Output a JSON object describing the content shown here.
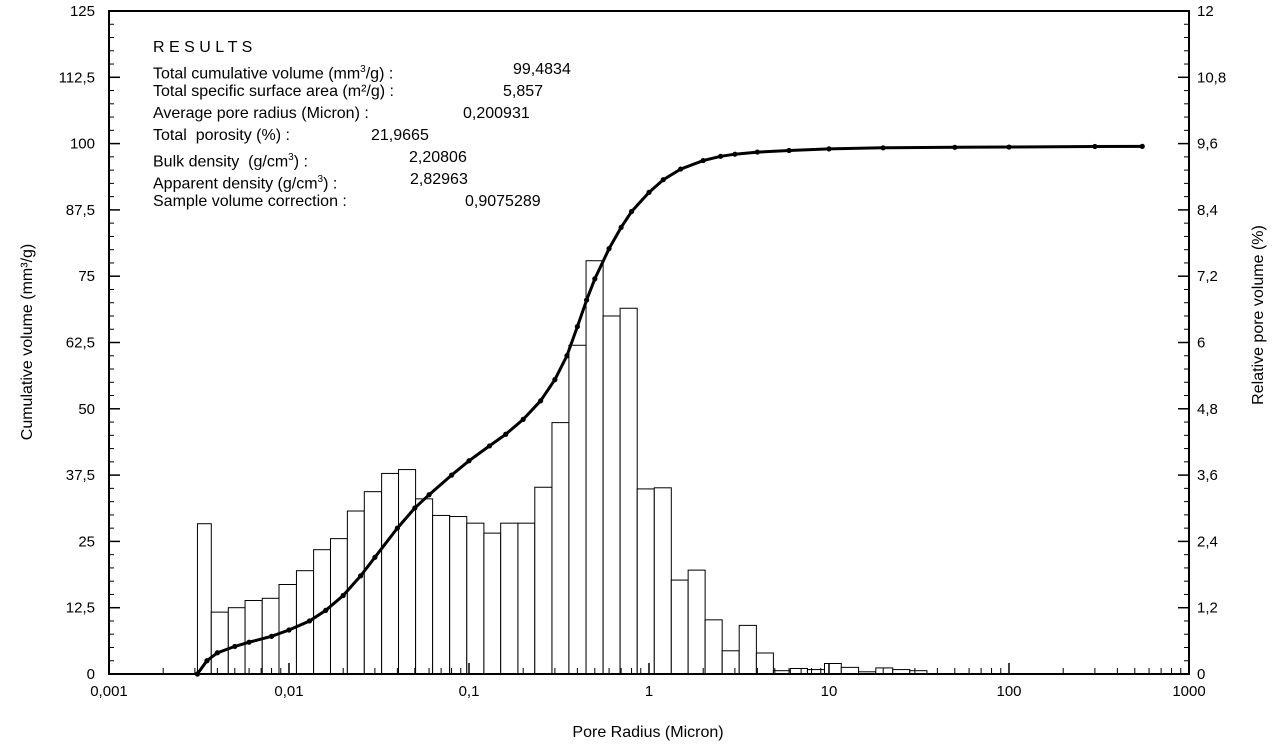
{
  "chart_data": {
    "type": "bar",
    "combo": "histogram (bars) with cumulative line",
    "xlabel": "Pore Radius (Micron)",
    "ylabel_left": "Cumulative volume (mm³/g)",
    "ylabel_right": "Relative pore volume (%)",
    "x_scale": "log",
    "xlim": [
      0.001,
      1000
    ],
    "ylim_left": [
      0,
      125
    ],
    "ylim_right": [
      0,
      12
    ],
    "x_ticks": [
      "0,001",
      "0,01",
      "0,1",
      "1",
      "10",
      "100",
      "1000"
    ],
    "y_ticks_left": [
      "0",
      "12,5",
      "25",
      "37,5",
      "50",
      "62,5",
      "75",
      "87,5",
      "100",
      "112,5",
      "125"
    ],
    "y_ticks_right": [
      "0",
      "1,2",
      "2,4",
      "3,6",
      "4,8",
      "6",
      "7,2",
      "8,4",
      "9,6",
      "10,8",
      "12"
    ],
    "grid": false,
    "results": {
      "heading": "R E S U L T S",
      "l1_label": "Total cumulative volume (mm",
      "l1_sup": "3",
      "l1_rest": "/g) :",
      "l1_value": "99,4834",
      "l2_label": "Total specific surface area (m²/g) :",
      "l2_value": "5,857",
      "l3_label": "Average pore radius (Micron) :",
      "l3_value": "0,200931",
      "l4_label": "Total  porosity (%) :",
      "l4_value": "21,9665",
      "l5_label": "Bulk density  (g/cm",
      "l5_sup": "3",
      "l5_rest": ") :",
      "l5_value": "2,20806",
      "l6_label": "Apparent density (g/cm",
      "l6_sup": "3",
      "l6_rest": ") :",
      "l6_value": "2,82963",
      "l7_label": "Sample volume correction :",
      "l7_value": "0,9075289"
    },
    "histogram": {
      "name": "Relative pore volume (%)",
      "bins": [
        {
          "x0": 0.0031,
          "x1": 0.0037,
          "value": 2.72
        },
        {
          "x0": 0.0037,
          "x1": 0.0046,
          "value": 1.12
        },
        {
          "x0": 0.0046,
          "x1": 0.0057,
          "value": 1.2
        },
        {
          "x0": 0.0057,
          "x1": 0.0071,
          "value": 1.33
        },
        {
          "x0": 0.0071,
          "x1": 0.0088,
          "value": 1.37
        },
        {
          "x0": 0.0088,
          "x1": 0.011,
          "value": 1.62
        },
        {
          "x0": 0.011,
          "x1": 0.0137,
          "value": 1.87
        },
        {
          "x0": 0.0137,
          "x1": 0.017,
          "value": 2.25
        },
        {
          "x0": 0.017,
          "x1": 0.0211,
          "value": 2.45
        },
        {
          "x0": 0.0211,
          "x1": 0.0262,
          "value": 2.95
        },
        {
          "x0": 0.0262,
          "x1": 0.0327,
          "value": 3.3
        },
        {
          "x0": 0.0327,
          "x1": 0.0406,
          "value": 3.63
        },
        {
          "x0": 0.0406,
          "x1": 0.0505,
          "value": 3.7
        },
        {
          "x0": 0.0505,
          "x1": 0.0628,
          "value": 3.17
        },
        {
          "x0": 0.0628,
          "x1": 0.0781,
          "value": 2.87
        },
        {
          "x0": 0.0781,
          "x1": 0.0972,
          "value": 2.85
        },
        {
          "x0": 0.0972,
          "x1": 0.121,
          "value": 2.73
        },
        {
          "x0": 0.121,
          "x1": 0.15,
          "value": 2.55
        },
        {
          "x0": 0.15,
          "x1": 0.187,
          "value": 2.73
        },
        {
          "x0": 0.187,
          "x1": 0.232,
          "value": 2.73
        },
        {
          "x0": 0.232,
          "x1": 0.289,
          "value": 3.38
        },
        {
          "x0": 0.289,
          "x1": 0.359,
          "value": 4.55
        },
        {
          "x0": 0.359,
          "x1": 0.447,
          "value": 5.95
        },
        {
          "x0": 0.447,
          "x1": 0.556,
          "value": 7.48
        },
        {
          "x0": 0.556,
          "x1": 0.691,
          "value": 6.48
        },
        {
          "x0": 0.691,
          "x1": 0.86,
          "value": 6.62
        },
        {
          "x0": 0.86,
          "x1": 1.07,
          "value": 3.35
        },
        {
          "x0": 1.07,
          "x1": 1.33,
          "value": 3.37
        },
        {
          "x0": 1.33,
          "x1": 1.65,
          "value": 1.7
        },
        {
          "x0": 1.65,
          "x1": 2.05,
          "value": 1.88
        },
        {
          "x0": 2.05,
          "x1": 2.55,
          "value": 0.98
        },
        {
          "x0": 2.55,
          "x1": 3.17,
          "value": 0.42
        },
        {
          "x0": 3.17,
          "x1": 3.95,
          "value": 0.88
        },
        {
          "x0": 3.95,
          "x1": 4.91,
          "value": 0.38
        },
        {
          "x0": 4.91,
          "x1": 6.1,
          "value": 0.06
        },
        {
          "x0": 6.1,
          "x1": 7.59,
          "value": 0.1
        },
        {
          "x0": 7.59,
          "x1": 9.44,
          "value": 0.08
        },
        {
          "x0": 9.44,
          "x1": 11.7,
          "value": 0.19
        },
        {
          "x0": 11.7,
          "x1": 14.6,
          "value": 0.12
        },
        {
          "x0": 14.6,
          "x1": 18.2,
          "value": 0.04
        },
        {
          "x0": 18.2,
          "x1": 22.6,
          "value": 0.11
        },
        {
          "x0": 22.6,
          "x1": 28.1,
          "value": 0.08
        },
        {
          "x0": 28.1,
          "x1": 35,
          "value": 0.06
        }
      ]
    },
    "cumulative": {
      "name": "Cumulative volume (mm³/g)",
      "points": [
        [
          0.0031,
          0
        ],
        [
          0.0035,
          2.5
        ],
        [
          0.004,
          4.0
        ],
        [
          0.005,
          5.2
        ],
        [
          0.006,
          6.0
        ],
        [
          0.008,
          7.1
        ],
        [
          0.01,
          8.3
        ],
        [
          0.013,
          10.0
        ],
        [
          0.016,
          12.0
        ],
        [
          0.02,
          14.8
        ],
        [
          0.025,
          18.5
        ],
        [
          0.03,
          22.0
        ],
        [
          0.04,
          27.5
        ],
        [
          0.05,
          31.3
        ],
        [
          0.06,
          33.8
        ],
        [
          0.08,
          37.5
        ],
        [
          0.1,
          40.2
        ],
        [
          0.13,
          43.0
        ],
        [
          0.16,
          45.2
        ],
        [
          0.2,
          48.0
        ],
        [
          0.25,
          51.5
        ],
        [
          0.3,
          55.5
        ],
        [
          0.35,
          60.0
        ],
        [
          0.4,
          65.5
        ],
        [
          0.45,
          70.5
        ],
        [
          0.5,
          74.5
        ],
        [
          0.6,
          80.2
        ],
        [
          0.7,
          84.2
        ],
        [
          0.8,
          87.2
        ],
        [
          1.0,
          90.8
        ],
        [
          1.2,
          93.2
        ],
        [
          1.5,
          95.2
        ],
        [
          2.0,
          96.8
        ],
        [
          2.5,
          97.6
        ],
        [
          3.0,
          98.0
        ],
        [
          4.0,
          98.4
        ],
        [
          6.0,
          98.7
        ],
        [
          10,
          99.0
        ],
        [
          20,
          99.2
        ],
        [
          50,
          99.3
        ],
        [
          100,
          99.35
        ],
        [
          300,
          99.45
        ],
        [
          550,
          99.48
        ]
      ]
    }
  }
}
